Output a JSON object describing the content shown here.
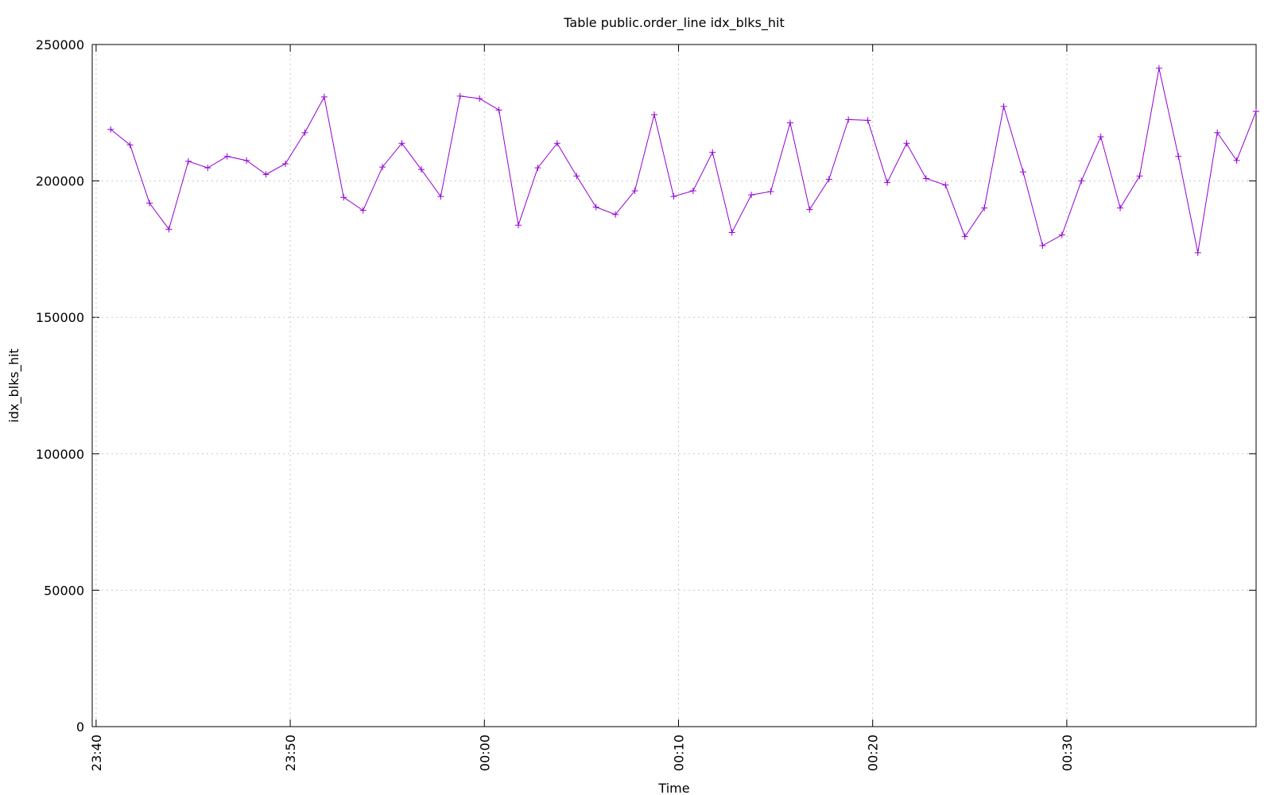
{
  "chart_data": {
    "type": "line",
    "title": "Table public.order_line idx_blks_hit",
    "x_label": "Time",
    "y_label": "idx_blks_hit",
    "x": [
      -19.25,
      -18.25,
      -17.25,
      -16.25,
      -15.25,
      -14.25,
      -13.25,
      -12.25,
      -11.25,
      -10.25,
      -9.25,
      -8.25,
      -7.25,
      -6.25,
      -5.25,
      -4.25,
      -3.25,
      -2.25,
      -1.25,
      -0.25,
      0.75,
      1.75,
      2.75,
      3.75,
      4.75,
      5.75,
      6.75,
      7.75,
      8.75,
      9.75,
      10.75,
      11.75,
      12.75,
      13.75,
      14.75,
      15.75,
      16.75,
      17.75,
      18.75,
      19.75,
      20.75,
      21.75,
      22.75,
      23.75,
      24.75,
      25.75,
      26.75,
      27.75,
      28.75,
      29.75,
      30.75,
      31.75,
      32.75,
      33.75,
      34.75,
      35.75,
      36.75,
      37.75,
      38.75,
      39.75
    ],
    "series": [
      {
        "name": "idx_blks_hit",
        "color": "#9400d3",
        "values": [
          218900,
          213200,
          191900,
          182300,
          207200,
          204800,
          209000,
          207500,
          202400,
          206300,
          217700,
          230800,
          194000,
          189200,
          205100,
          213800,
          204200,
          194300,
          231100,
          230200,
          226000,
          183800,
          204800,
          213800,
          201800,
          190400,
          187700,
          196400,
          224300,
          194300,
          196400,
          210500,
          181100,
          194900,
          196100,
          221300,
          189500,
          200600,
          222500,
          222200,
          199400,
          213800,
          200900,
          198500,
          179600,
          190100,
          227300,
          203300,
          176300,
          180200,
          200000,
          216200,
          190100,
          201800,
          241300,
          209000,
          173700,
          217700,
          207500,
          225500
        ]
      }
    ],
    "xlim": [
      -20.2,
      39.75
    ],
    "xticks": [
      {
        "value": -20,
        "label": "23:40"
      },
      {
        "value": -10,
        "label": "23:50"
      },
      {
        "value": 0,
        "label": "00:00"
      },
      {
        "value": 10,
        "label": "00:10"
      },
      {
        "value": 20,
        "label": "00:20"
      },
      {
        "value": 30,
        "label": "00:30"
      }
    ],
    "ylim": [
      0,
      250000
    ],
    "yticks": [
      0,
      50000,
      100000,
      150000,
      200000,
      250000
    ],
    "grid": true
  }
}
